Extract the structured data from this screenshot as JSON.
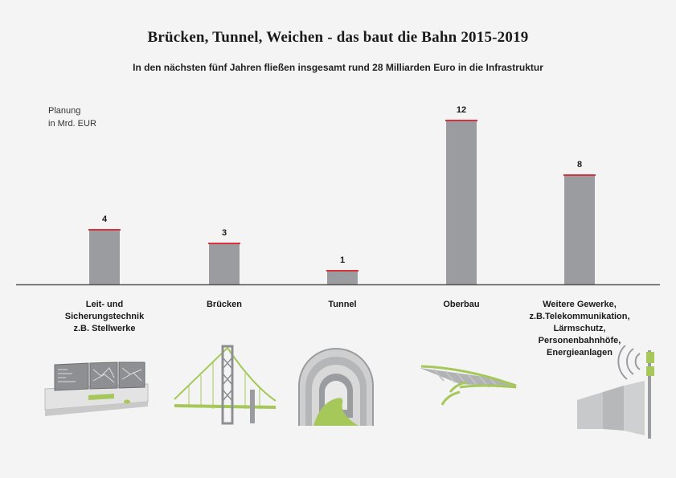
{
  "chart_data": {
    "type": "bar",
    "title": "Brücken, Tunnel, Weichen - das baut die Bahn 2015-2019",
    "subtitle": "In den nächsten fünf Jahren fließen insgesamt rund 28 Milliarden Euro in die Infrastruktur",
    "ylabel_lines": [
      "Planung",
      "in Mrd. EUR"
    ],
    "categories": [
      "Leit- und\nSicherungstechnik\nz.B. Stellwerke",
      "Brücken",
      "Tunnel",
      "Oberbau",
      "Weitere Gewerke,\nz.B.Telekommunikation,\nLärmschutz,\nPersonenbahnhöfe,\nEnergieanlagen"
    ],
    "values": [
      4,
      3,
      1,
      12,
      8
    ],
    "data_labels": [
      "4",
      "3",
      "1",
      "12",
      "8"
    ],
    "ylim": [
      0,
      12
    ],
    "grid": false,
    "colors": {
      "bar": "#9a9c9f",
      "bar_top": "#d9323c",
      "baseline": "#555555",
      "accent": "#a6c85a"
    }
  },
  "icons": [
    "control-room-icon",
    "bridge-icon",
    "tunnel-icon",
    "track-icon",
    "telecom-noise-barrier-icon"
  ]
}
